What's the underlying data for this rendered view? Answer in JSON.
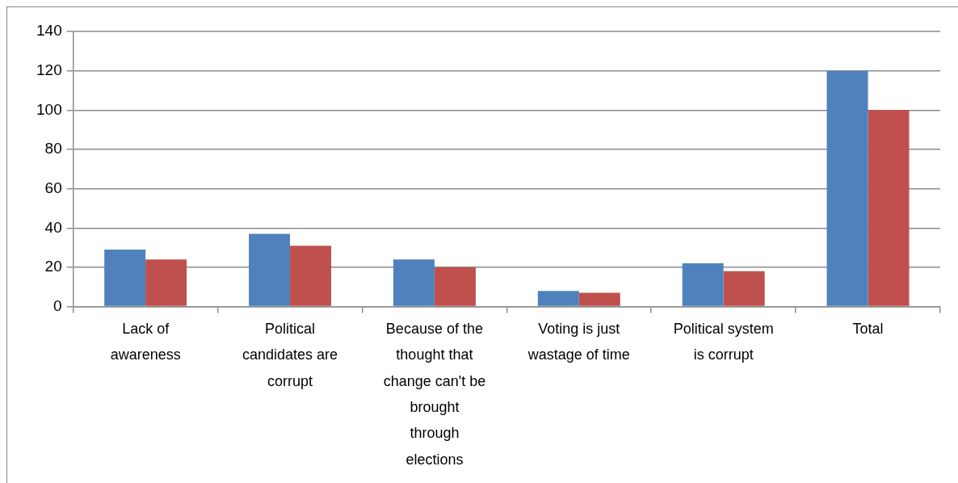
{
  "chart_data": {
    "type": "bar",
    "categories": [
      "Lack of awareness",
      "Political candidates are corrupt",
      "Because of the thought that change can't be brought through elections",
      "Voting is just wastage of time",
      "Political system is corrupt",
      "Total"
    ],
    "series": [
      {
        "color": "#4f81bd",
        "values": [
          29,
          37,
          24,
          8,
          22,
          120
        ]
      },
      {
        "color": "#c0504d",
        "values": [
          24,
          31,
          20,
          7,
          18,
          100
        ]
      }
    ],
    "ylim": [
      0,
      140
    ],
    "yticks": [
      0,
      20,
      40,
      60,
      80,
      100,
      120,
      140
    ],
    "grid": "y"
  }
}
